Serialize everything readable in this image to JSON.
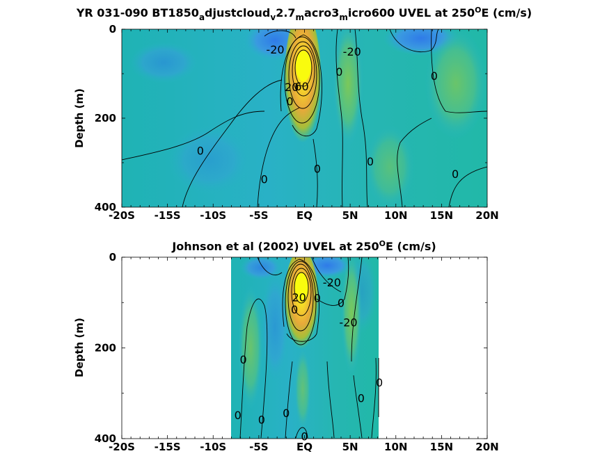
{
  "chart_data": [
    {
      "type": "contour",
      "title": "YR 031-090 BT1850_adjustcloud_v2.7_macro3_micro600 UVEL at 250°E (cm/s)",
      "title_parts": [
        "YR 031-090 BT1850",
        "a",
        "djustcloud",
        "v",
        "2.7",
        "m",
        "acro3",
        "m",
        "icro600 UVEL at 250",
        "O",
        "E (cm/s)"
      ],
      "ylabel": "Depth (m)",
      "xlim": [
        -20,
        20
      ],
      "ylim": [
        400,
        0
      ],
      "xticks": [
        "-20S",
        "-15S",
        "-10S",
        "-5S",
        "EQ",
        "5N",
        "10N",
        "15N",
        "20N"
      ],
      "yticks": [
        "0",
        "200",
        "400"
      ],
      "data_extent": [
        -20,
        20
      ],
      "colormap": "parula",
      "contour_labels": [
        {
          "text": "-20",
          "x": -3.2,
          "y": 45
        },
        {
          "text": "-20",
          "x": 5.2,
          "y": 50
        },
        {
          "text": "0",
          "x": 3.8,
          "y": 95
        },
        {
          "text": "0",
          "x": 14.2,
          "y": 105
        },
        {
          "text": "20",
          "x": -1.4,
          "y": 130
        },
        {
          "text": "60",
          "x": -0.3,
          "y": 128
        },
        {
          "text": "0",
          "x": -1.6,
          "y": 162
        },
        {
          "text": "0",
          "x": -11.4,
          "y": 273
        },
        {
          "text": "0",
          "x": 1.4,
          "y": 313
        },
        {
          "text": "0",
          "x": 7.2,
          "y": 297
        },
        {
          "text": "0",
          "x": -4.4,
          "y": 337
        },
        {
          "text": "0",
          "x": 16.5,
          "y": 325
        }
      ]
    },
    {
      "type": "contour",
      "title": "Johnson et al (2002) UVEL at 250°E (cm/s)",
      "title_parts": [
        "Johnson et al (2002) UVEL at 250",
        "O",
        "E (cm/s)"
      ],
      "ylabel": "Depth (m)",
      "xlim": [
        -20,
        20
      ],
      "ylim": [
        400,
        0
      ],
      "xticks": [
        "-20S",
        "-15S",
        "-10S",
        "-5S",
        "EQ",
        "5N",
        "10N",
        "15N",
        "20N"
      ],
      "yticks": [
        "0",
        "200",
        "400"
      ],
      "data_extent": [
        -8,
        8.2
      ],
      "colormap": "parula",
      "contour_labels": [
        {
          "text": "-20",
          "x": 3.0,
          "y": 55
        },
        {
          "text": "0",
          "x": 1.4,
          "y": 90
        },
        {
          "text": "20",
          "x": -0.6,
          "y": 88
        },
        {
          "text": "0",
          "x": -1.1,
          "y": 115
        },
        {
          "text": "0",
          "x": 4.0,
          "y": 100
        },
        {
          "text": "-20",
          "x": 4.8,
          "y": 143
        },
        {
          "text": "0",
          "x": -6.7,
          "y": 225
        },
        {
          "text": "0",
          "x": 8.2,
          "y": 276
        },
        {
          "text": "0",
          "x": 6.2,
          "y": 310
        },
        {
          "text": "0",
          "x": -7.3,
          "y": 348
        },
        {
          "text": "0",
          "x": -4.7,
          "y": 358
        },
        {
          "text": "0",
          "x": -2.0,
          "y": 343
        },
        {
          "text": "0",
          "x": 0.0,
          "y": 395
        }
      ]
    }
  ]
}
